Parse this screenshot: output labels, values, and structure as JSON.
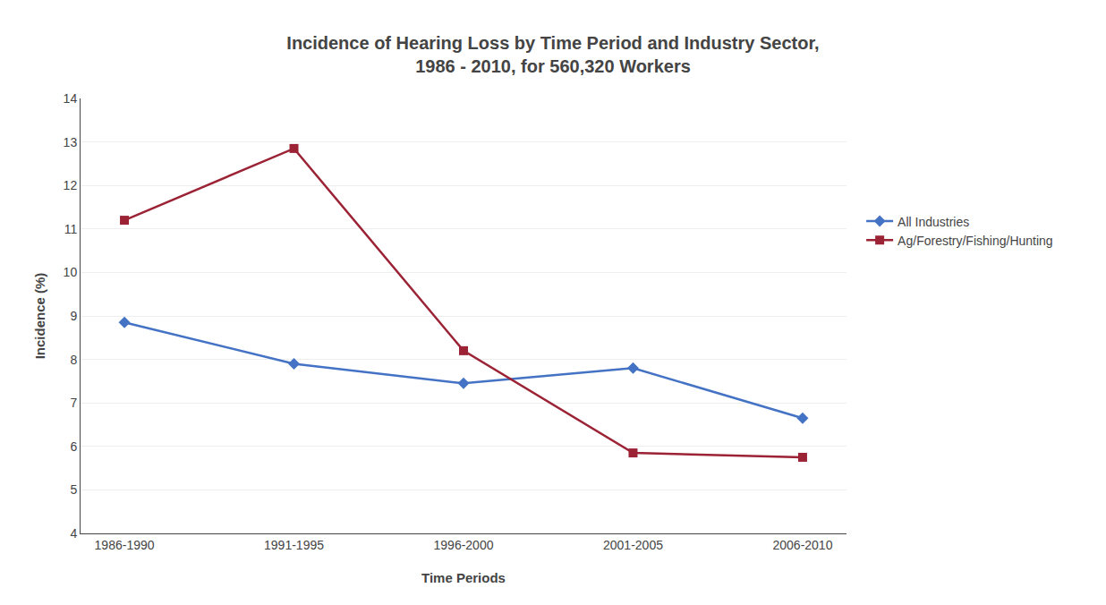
{
  "chart_data": {
    "type": "line",
    "title": "Incidence of Hearing Loss by Time Period and Industry Sector,\n1986 - 2010, for 560,320 Workers",
    "xlabel": "Time Periods",
    "ylabel": "Incidence (%)",
    "categories": [
      "1986-1990",
      "1991-1995",
      "1996-2000",
      "2001-2005",
      "2006-2010"
    ],
    "series": [
      {
        "name": "All Industries",
        "color": "#4472C4",
        "marker": "diamond",
        "values": [
          8.85,
          7.9,
          7.45,
          7.8,
          6.65
        ]
      },
      {
        "name": "Ag/Forestry/Fishing/Hunting",
        "color": "#9B2335",
        "marker": "square",
        "values": [
          11.2,
          12.85,
          8.2,
          5.85,
          5.75
        ]
      }
    ],
    "ylim": [
      4,
      14
    ],
    "yticks": [
      4,
      5,
      6,
      7,
      8,
      9,
      10,
      11,
      12,
      13,
      14
    ],
    "grid": true,
    "legend": "right"
  }
}
